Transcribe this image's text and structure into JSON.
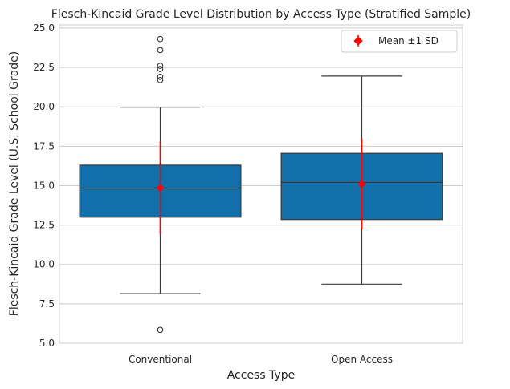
{
  "chart_data": {
    "type": "box",
    "title": "Flesch-Kincaid Grade Level Distribution by Access Type (Stratified Sample)",
    "xlabel": "Access Type",
    "ylabel": "Flesch-Kincaid Grade Level (U.S. School Grade)",
    "ylim": [
      5.0,
      25.2
    ],
    "yticks": [
      "5.0",
      "7.5",
      "10.0",
      "12.5",
      "15.0",
      "17.5",
      "20.0",
      "22.5",
      "25.0"
    ],
    "grid": "horizontal",
    "legend_placement": "top-right",
    "legend": {
      "label": "Mean ±1 SD"
    },
    "box_color": "#1170aa",
    "mean_color": "#ff0000",
    "categories": [
      "Conventional",
      "Open Access"
    ],
    "boxes": [
      {
        "category": "Conventional",
        "whisker_low": 8.15,
        "q1": 13.0,
        "median": 14.85,
        "q3": 16.3,
        "whisker_high": 19.98,
        "outliers": [
          5.85,
          21.7,
          21.9,
          22.4,
          22.6,
          23.6,
          24.3
        ],
        "mean": 14.85,
        "sd": 2.95
      },
      {
        "category": "Open Access",
        "whisker_low": 8.75,
        "q1": 12.85,
        "median": 15.2,
        "q3": 17.05,
        "whisker_high": 21.95,
        "outliers": [],
        "mean": 15.1,
        "sd": 2.9
      }
    ]
  }
}
